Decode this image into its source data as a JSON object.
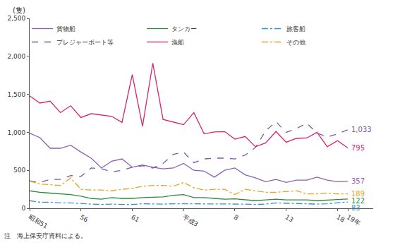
{
  "chart_data": {
    "type": "line",
    "ylabel": "(隻)",
    "note": "注　海上保安庁資料による。",
    "categories": [
      "昭和51",
      null,
      null,
      null,
      null,
      "56",
      null,
      null,
      null,
      null,
      "61",
      null,
      null,
      null,
      null,
      "平成3",
      null,
      null,
      null,
      null,
      "8",
      null,
      null,
      null,
      null,
      "13",
      null,
      null,
      null,
      null,
      "18",
      "19年"
    ],
    "ylim": [
      0,
      2500
    ],
    "yticks": [
      0,
      500,
      {
        "value": 1000,
        "label": "1,000"
      },
      {
        "value": 1500,
        "label": "1,500"
      },
      {
        "value": 2000,
        "label": "2,000"
      },
      {
        "value": 2500,
        "label": "2,500"
      }
    ],
    "grid": false,
    "legend": "top-right",
    "series": [
      {
        "name": "貨物船",
        "color": "#8e5fae",
        "line_style": "solid",
        "values": [
          990,
          930,
          790,
          790,
          830,
          740,
          660,
          530,
          620,
          650,
          540,
          570,
          540,
          520,
          530,
          590,
          500,
          490,
          410,
          500,
          530,
          440,
          400,
          350,
          380,
          340,
          370,
          370,
          410,
          370,
          350,
          357
        ],
        "value_labels": [
          null,
          null,
          null,
          null,
          null,
          null,
          null,
          null,
          null,
          null,
          null,
          null,
          null,
          null,
          null,
          null,
          null,
          null,
          null,
          null,
          null,
          null,
          null,
          null,
          null,
          null,
          null,
          null,
          null,
          null,
          null,
          "357"
        ]
      },
      {
        "name": "タンカー",
        "color": "#2e8b3e",
        "line_style": "solid",
        "values": [
          230,
          210,
          200,
          190,
          180,
          160,
          130,
          120,
          140,
          130,
          130,
          140,
          145,
          150,
          170,
          180,
          140,
          140,
          130,
          120,
          125,
          110,
          100,
          110,
          120,
          110,
          110,
          110,
          100,
          110,
          115,
          122
        ],
        "value_labels": [
          null,
          null,
          null,
          null,
          null,
          null,
          null,
          null,
          null,
          null,
          null,
          null,
          null,
          null,
          null,
          null,
          null,
          null,
          null,
          null,
          null,
          null,
          null,
          null,
          null,
          null,
          null,
          null,
          null,
          null,
          null,
          "122"
        ]
      },
      {
        "name": "旅客船",
        "color": "#3a8fd0",
        "line_style": "dashdot",
        "values": [
          100,
          80,
          80,
          70,
          70,
          60,
          55,
          50,
          55,
          50,
          50,
          60,
          55,
          55,
          60,
          60,
          60,
          55,
          55,
          55,
          60,
          55,
          50,
          55,
          70,
          65,
          60,
          60,
          55,
          60,
          75,
          83
        ],
        "value_labels": [
          null,
          null,
          null,
          null,
          null,
          null,
          null,
          null,
          null,
          null,
          null,
          null,
          null,
          null,
          null,
          null,
          null,
          null,
          null,
          null,
          null,
          null,
          null,
          null,
          null,
          null,
          null,
          null,
          null,
          null,
          null,
          "83"
        ]
      },
      {
        "name": "プレジャーボート等",
        "color": "#7a5aa0",
        "line_style": "dash",
        "values": [
          360,
          340,
          380,
          380,
          430,
          420,
          530,
          520,
          480,
          500,
          540,
          560,
          530,
          590,
          710,
          740,
          600,
          650,
          660,
          660,
          650,
          700,
          800,
          1020,
          1140,
          1000,
          1050,
          1120,
          990,
          940,
          980,
          1033
        ],
        "value_labels": [
          null,
          null,
          null,
          null,
          null,
          null,
          null,
          null,
          null,
          null,
          null,
          null,
          null,
          null,
          null,
          null,
          null,
          null,
          null,
          null,
          null,
          null,
          null,
          null,
          null,
          null,
          null,
          null,
          null,
          null,
          null,
          "1,033"
        ]
      },
      {
        "name": "漁船",
        "color": "#d6246e",
        "line_style": "solid",
        "values": [
          1480,
          1385,
          1410,
          1260,
          1350,
          1195,
          1245,
          1225,
          1210,
          1130,
          1760,
          1080,
          1910,
          1170,
          1135,
          1100,
          1260,
          980,
          1005,
          1010,
          910,
          945,
          810,
          860,
          1010,
          870,
          920,
          925,
          1000,
          810,
          890,
          795
        ],
        "value_labels": [
          null,
          null,
          null,
          null,
          null,
          null,
          null,
          null,
          null,
          null,
          null,
          null,
          null,
          null,
          null,
          null,
          null,
          null,
          null,
          null,
          null,
          null,
          null,
          null,
          null,
          null,
          null,
          null,
          null,
          null,
          null,
          "795"
        ]
      },
      {
        "name": "その他",
        "color": "#f0a020",
        "line_style": "dashdot",
        "values": [
          360,
          320,
          310,
          300,
          400,
          250,
          240,
          240,
          230,
          250,
          260,
          290,
          300,
          300,
          290,
          340,
          270,
          240,
          250,
          250,
          180,
          250,
          230,
          210,
          210,
          220,
          230,
          190,
          190,
          200,
          190,
          189
        ],
        "value_labels": [
          null,
          null,
          null,
          null,
          null,
          null,
          null,
          null,
          null,
          null,
          null,
          null,
          null,
          null,
          null,
          null,
          null,
          null,
          null,
          null,
          null,
          null,
          null,
          null,
          null,
          null,
          null,
          null,
          null,
          null,
          null,
          "189"
        ]
      }
    ]
  }
}
